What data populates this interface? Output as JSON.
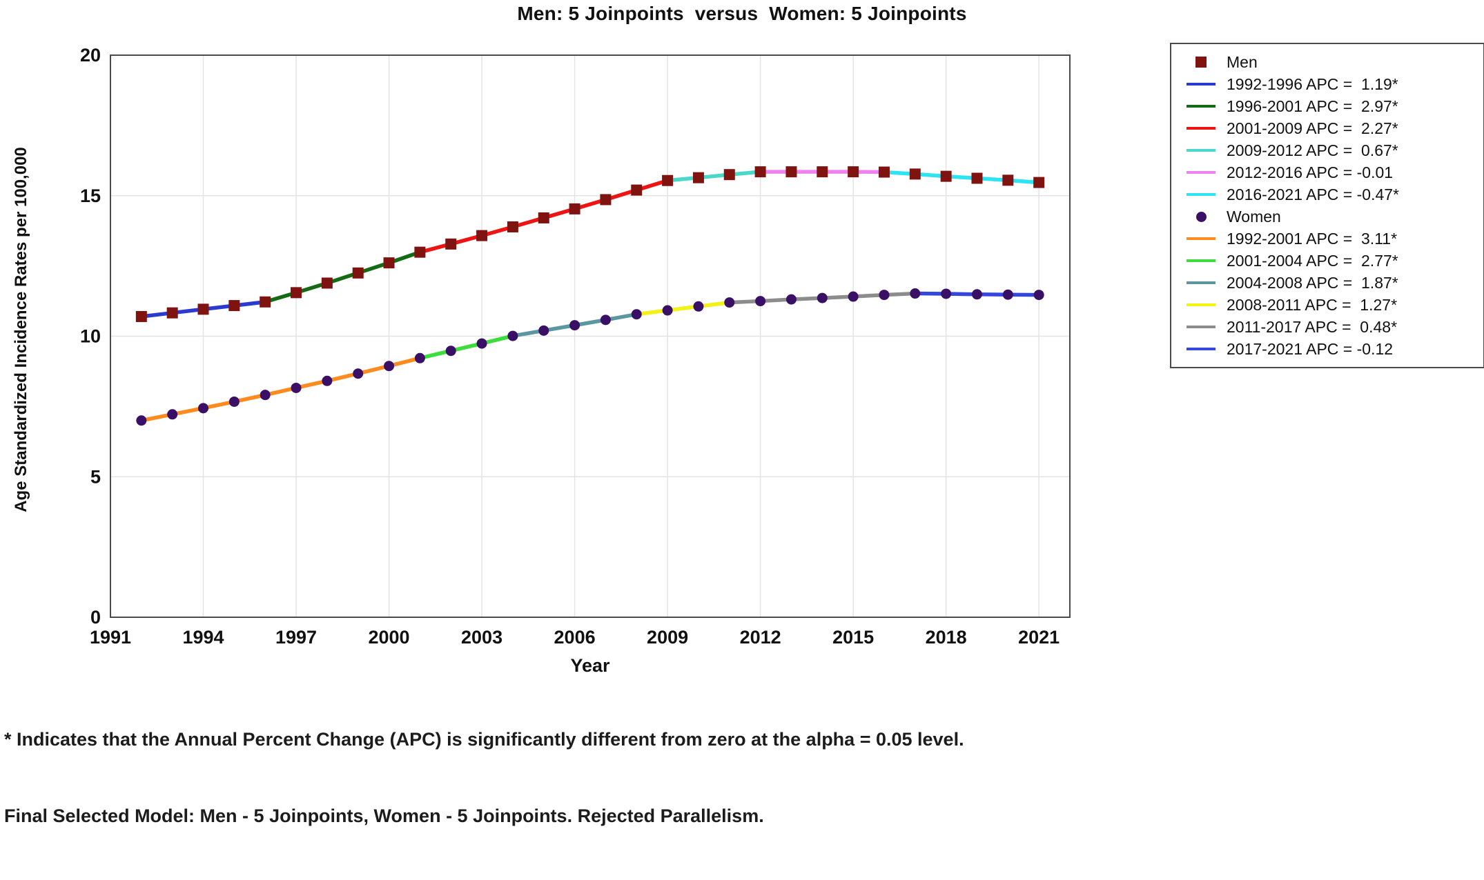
{
  "chart_data": {
    "type": "line",
    "title": "Men: 5 Joinpoints  versus  Women: 5 Joinpoints",
    "xlabel": "Year",
    "ylabel": "Age Standardized Incidence Rates per 100,000",
    "xlim": [
      1991,
      2022
    ],
    "ylim": [
      0,
      20
    ],
    "xticks": [
      1991,
      1994,
      1997,
      2000,
      2003,
      2006,
      2009,
      2012,
      2015,
      2018,
      2021
    ],
    "yticks": [
      0,
      5,
      10,
      15,
      20
    ],
    "grid": true,
    "legend_position": "top-right",
    "series": [
      {
        "name": "Men",
        "marker": "square",
        "marker_color": "#7f1310",
        "years": [
          1992,
          1993,
          1994,
          1995,
          1996,
          1997,
          1998,
          1999,
          2000,
          2001,
          2002,
          2003,
          2004,
          2005,
          2006,
          2007,
          2008,
          2009,
          2010,
          2011,
          2012,
          2013,
          2014,
          2015,
          2016,
          2017,
          2018,
          2019,
          2020,
          2021
        ],
        "values": [
          10.7,
          10.83,
          10.96,
          11.09,
          11.22,
          11.55,
          11.89,
          12.25,
          12.61,
          12.99,
          13.28,
          13.58,
          13.89,
          14.21,
          14.53,
          14.86,
          15.2,
          15.54,
          15.64,
          15.75,
          15.85,
          15.85,
          15.85,
          15.85,
          15.84,
          15.77,
          15.69,
          15.62,
          15.55,
          15.47
        ],
        "segments": [
          {
            "label": "1992-1996 APC =  1.19*",
            "start": 1992,
            "end": 1996,
            "color": "#2b3bd0",
            "apc": 1.19,
            "significant": true
          },
          {
            "label": "1996-2001 APC =  2.97*",
            "start": 1996,
            "end": 2001,
            "color": "#156b15",
            "apc": 2.97,
            "significant": true
          },
          {
            "label": "2001-2009 APC =  2.27*",
            "start": 2001,
            "end": 2009,
            "color": "#ee1414",
            "apc": 2.27,
            "significant": true
          },
          {
            "label": "2009-2012 APC =  0.67*",
            "start": 2009,
            "end": 2012,
            "color": "#49d8c9",
            "apc": 0.67,
            "significant": true
          },
          {
            "label": "2012-2016 APC = -0.01",
            "start": 2012,
            "end": 2016,
            "color": "#ee82ee",
            "apc": -0.01,
            "significant": false
          },
          {
            "label": "2016-2021 APC = -0.47*",
            "start": 2016,
            "end": 2021,
            "color": "#2de4f5",
            "apc": -0.47,
            "significant": true
          }
        ]
      },
      {
        "name": "Women",
        "marker": "circle",
        "marker_color": "#3a0f66",
        "years": [
          1992,
          1993,
          1994,
          1995,
          1996,
          1997,
          1998,
          1999,
          2000,
          2001,
          2002,
          2003,
          2004,
          2005,
          2006,
          2007,
          2008,
          2009,
          2010,
          2011,
          2012,
          2013,
          2014,
          2015,
          2016,
          2017,
          2018,
          2019,
          2020,
          2021
        ],
        "values": [
          7.0,
          7.22,
          7.44,
          7.67,
          7.91,
          8.16,
          8.41,
          8.67,
          8.94,
          9.22,
          9.48,
          9.74,
          10.01,
          10.2,
          10.39,
          10.58,
          10.78,
          10.92,
          11.06,
          11.2,
          11.25,
          11.31,
          11.36,
          11.41,
          11.47,
          11.52,
          11.51,
          11.49,
          11.48,
          11.47
        ],
        "segments": [
          {
            "label": "1992-2001 APC =  3.11*",
            "start": 1992,
            "end": 2001,
            "color": "#ff8a1e",
            "apc": 3.11,
            "significant": true
          },
          {
            "label": "2001-2004 APC =  2.77*",
            "start": 2001,
            "end": 2004,
            "color": "#3edd3e",
            "apc": 2.77,
            "significant": true
          },
          {
            "label": "2004-2008 APC =  1.87*",
            "start": 2004,
            "end": 2008,
            "color": "#5b97a0",
            "apc": 1.87,
            "significant": true
          },
          {
            "label": "2008-2011 APC =  1.27*",
            "start": 2008,
            "end": 2011,
            "color": "#f2f215",
            "apc": 1.27,
            "significant": true
          },
          {
            "label": "2011-2017 APC =  0.48*",
            "start": 2011,
            "end": 2017,
            "color": "#8c8c8c",
            "apc": 0.48,
            "significant": true
          },
          {
            "label": "2017-2021 APC = -0.12",
            "start": 2017,
            "end": 2021,
            "color": "#3347dd",
            "apc": -0.12,
            "significant": false
          }
        ]
      }
    ],
    "footnotes": [
      "* Indicates that the Annual Percent Change (APC) is significantly different from zero at the alpha = 0.05 level.",
      "Final Selected Model: Men - 5 Joinpoints, Women - 5 Joinpoints. Rejected Parallelism."
    ],
    "colors": {
      "grid": "#e3e3e3",
      "plot_border": "#4a4a4a",
      "text": "#111111"
    }
  }
}
